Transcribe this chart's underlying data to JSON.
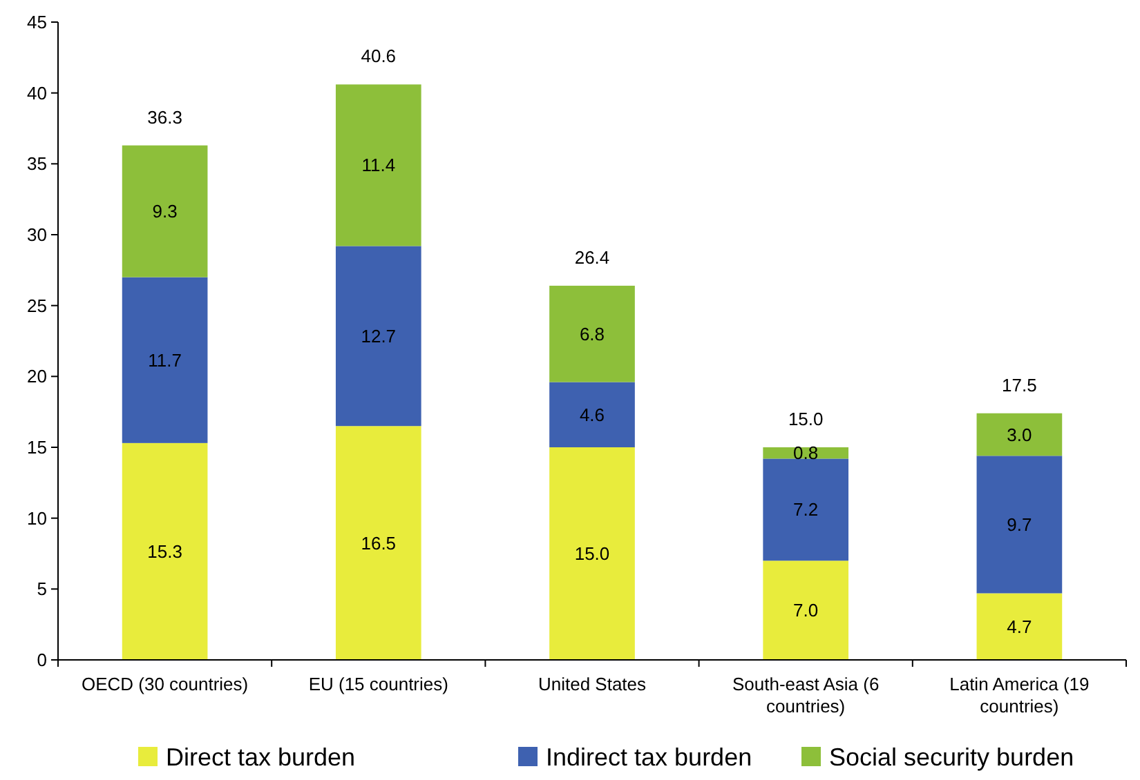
{
  "chart_data": {
    "type": "bar",
    "stacked": true,
    "categories": [
      "OECD (30 countries)",
      "EU (15 countries)",
      "United States",
      "South-east Asia (6 countries)",
      "Latin America (19 countries)"
    ],
    "series": [
      {
        "name": "Direct tax burden",
        "color": "#e8ec3c",
        "values": [
          15.3,
          16.5,
          15.0,
          7.0,
          4.7
        ],
        "value_labels": [
          "15.3",
          "16.5",
          "15.0",
          "7.0",
          "4.7"
        ]
      },
      {
        "name": "Indirect tax burden",
        "color": "#3e61b0",
        "values": [
          11.7,
          12.7,
          4.6,
          7.2,
          9.7
        ],
        "value_labels": [
          "11.7",
          "12.7",
          "4.6",
          "7.2",
          "9.7"
        ]
      },
      {
        "name": "Social security burden",
        "color": "#8dbf3a",
        "values": [
          9.3,
          11.4,
          6.8,
          0.8,
          3.0
        ],
        "value_labels": [
          "9.3",
          "11.4",
          "6.8",
          "0.8",
          "3.0"
        ]
      }
    ],
    "totals": [
      "36.3",
      "40.6",
      "26.4",
      "15.0",
      "17.5"
    ],
    "ylim": [
      0,
      45
    ],
    "yticks": [
      0,
      5,
      10,
      15,
      20,
      25,
      30,
      35,
      40,
      45
    ],
    "grid": false,
    "legend": "bottom"
  }
}
